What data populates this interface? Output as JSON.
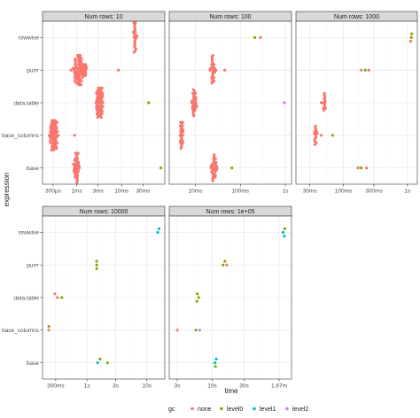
{
  "chart_data": {
    "type": "scatter",
    "xlabel": "time",
    "ylabel": "expression",
    "categories": [
      "base",
      "base_columns",
      "data.table",
      "purrr",
      "rowwise"
    ],
    "legend": {
      "title": "gc",
      "position": "bottom",
      "entries": [
        {
          "name": "none",
          "color": "#F8766D"
        },
        {
          "name": "level0",
          "color": "#7CAE00"
        },
        {
          "name": "level1",
          "color": "#00BFC4"
        },
        {
          "name": "level2",
          "color": "#C77CFF"
        }
      ]
    },
    "panels": [
      {
        "title": "Num rows: 10",
        "xscale": "log",
        "xlim_seconds": [
          0.0002,
          0.08
        ],
        "ticks": [
          {
            "value": 0.0003,
            "label": "300µs"
          },
          {
            "value": 0.001,
            "label": "1ms"
          },
          {
            "value": 0.003,
            "label": "3ms"
          },
          {
            "value": 0.01,
            "label": "10ms"
          },
          {
            "value": 0.03,
            "label": "30ms"
          }
        ],
        "clusters": [
          {
            "category": "rowwise",
            "center": 0.02,
            "log_spread": 0.04,
            "count": 22,
            "gc": "none"
          },
          {
            "category": "purrr",
            "center": 0.0012,
            "log_spread": 0.14,
            "count": 70,
            "gc": "none"
          },
          {
            "category": "data.table",
            "center": 0.0033,
            "log_spread": 0.08,
            "count": 55,
            "gc": "none"
          },
          {
            "category": "base_columns",
            "center": 0.00031,
            "log_spread": 0.09,
            "count": 70,
            "gc": "none"
          },
          {
            "category": "base",
            "center": 0.001,
            "log_spread": 0.05,
            "count": 60,
            "gc": "none"
          }
        ],
        "points": [
          {
            "category": "purrr",
            "x": 0.0085,
            "gc": "none"
          },
          {
            "category": "data.table",
            "x": 0.04,
            "gc": "level0"
          },
          {
            "category": "base_columns",
            "x": 0.0009,
            "gc": "none"
          },
          {
            "category": "base",
            "x": 0.075,
            "gc": "level0"
          }
        ]
      },
      {
        "title": "Num rows: 100",
        "xscale": "log",
        "xlim_seconds": [
          0.003,
          1.2
        ],
        "ticks": [
          {
            "value": 0.01,
            "label": "10ms"
          },
          {
            "value": 0.1,
            "label": "100ms"
          },
          {
            "value": 1,
            "label": "1s"
          }
        ],
        "clusters": [
          {
            "category": "purrr",
            "center": 0.025,
            "log_spread": 0.05,
            "count": 24,
            "gc": "none"
          },
          {
            "category": "data.table",
            "center": 0.0095,
            "log_spread": 0.06,
            "count": 26,
            "gc": "none"
          },
          {
            "category": "base_columns",
            "center": 0.005,
            "log_spread": 0.04,
            "count": 22,
            "gc": "none"
          },
          {
            "category": "base",
            "center": 0.026,
            "log_spread": 0.08,
            "count": 28,
            "gc": "none"
          }
        ],
        "points": [
          {
            "category": "rowwise",
            "x": 0.21,
            "gc": "level0"
          },
          {
            "category": "rowwise",
            "x": 0.28,
            "gc": "none"
          },
          {
            "category": "purrr",
            "x": 0.045,
            "gc": "none"
          },
          {
            "category": "data.table",
            "x": 0.95,
            "gc": "level2"
          },
          {
            "category": "base",
            "x": 0.065,
            "gc": "level0"
          }
        ]
      },
      {
        "title": "Num rows: 1000",
        "xscale": "log",
        "xlim_seconds": [
          0.02,
          1.3
        ],
        "ticks": [
          {
            "value": 0.03,
            "label": "30ms"
          },
          {
            "value": 0.1,
            "label": "100ms"
          },
          {
            "value": 0.3,
            "label": "300ms"
          },
          {
            "value": 1,
            "label": "1s"
          }
        ],
        "clusters": [
          {
            "category": "data.table",
            "center": 0.05,
            "log_spread": 0.02,
            "count": 12,
            "gc": "none"
          },
          {
            "category": "base_columns",
            "center": 0.037,
            "log_spread": 0.03,
            "count": 13,
            "gc": "none"
          }
        ],
        "points": [
          {
            "category": "rowwise",
            "x": 1.15,
            "gc": "level0"
          },
          {
            "category": "rowwise",
            "x": 1.17,
            "gc": "level0"
          },
          {
            "category": "rowwise",
            "x": 1.13,
            "gc": "none"
          },
          {
            "category": "purrr",
            "x": 0.19,
            "gc": "none"
          },
          {
            "category": "purrr",
            "x": 0.22,
            "gc": "level0"
          },
          {
            "category": "purrr",
            "x": 0.25,
            "gc": "none"
          },
          {
            "category": "data.table",
            "x": 0.045,
            "gc": "none"
          },
          {
            "category": "base_columns",
            "x": 0.068,
            "gc": "level0"
          },
          {
            "category": "base_columns",
            "x": 0.045,
            "gc": "none"
          },
          {
            "category": "base",
            "x": 0.17,
            "gc": "none"
          },
          {
            "category": "base",
            "x": 0.19,
            "gc": "level0"
          },
          {
            "category": "base",
            "x": 0.23,
            "gc": "none"
          }
        ]
      },
      {
        "title": "Num rows: 10000",
        "xscale": "log",
        "xlim_seconds": [
          0.2,
          18
        ],
        "ticks": [
          {
            "value": 0.3,
            "label": "300ms"
          },
          {
            "value": 1,
            "label": "1s"
          },
          {
            "value": 3,
            "label": "3s"
          },
          {
            "value": 10,
            "label": "10s"
          }
        ],
        "clusters": [],
        "points": [
          {
            "category": "rowwise",
            "x": 15.2,
            "gc": "level1"
          },
          {
            "category": "rowwise",
            "x": 16.0,
            "gc": "level1"
          },
          {
            "category": "purrr",
            "x": 1.45,
            "gc": "level0"
          },
          {
            "category": "purrr",
            "x": 1.45,
            "gc": "level0"
          },
          {
            "category": "purrr",
            "x": 1.45,
            "gc": "level0"
          },
          {
            "category": "data.table",
            "x": 0.32,
            "gc": "none"
          },
          {
            "category": "data.table",
            "x": 0.38,
            "gc": "level0"
          },
          {
            "category": "data.table",
            "x": 0.29,
            "gc": "none"
          },
          {
            "category": "base_columns",
            "x": 0.23,
            "gc": "none"
          },
          {
            "category": "base_columns",
            "x": 0.23,
            "gc": "level0"
          },
          {
            "category": "base",
            "x": 1.5,
            "gc": "level1"
          },
          {
            "category": "base",
            "x": 1.65,
            "gc": "level0"
          },
          {
            "category": "base",
            "x": 2.2,
            "gc": "level0"
          }
        ]
      },
      {
        "title": "Num rows: 1e+05",
        "xscale": "log",
        "xlim_seconds": [
          2.5,
          140
        ],
        "ticks": [
          {
            "value": 3,
            "label": "3s"
          },
          {
            "value": 10,
            "label": "10s"
          },
          {
            "value": 30,
            "label": "30s"
          },
          {
            "value": 100.2,
            "label": "1.67m"
          }
        ],
        "clusters": [],
        "points": [
          {
            "category": "rowwise",
            "x": 115,
            "gc": "level1"
          },
          {
            "category": "rowwise",
            "x": 122,
            "gc": "level0"
          },
          {
            "category": "rowwise",
            "x": 120,
            "gc": "level1"
          },
          {
            "category": "purrr",
            "x": 14.5,
            "gc": "level0"
          },
          {
            "category": "purrr",
            "x": 15.5,
            "gc": "level0"
          },
          {
            "category": "purrr",
            "x": 16.5,
            "gc": "none"
          },
          {
            "category": "data.table",
            "x": 6.3,
            "gc": "level0"
          },
          {
            "category": "data.table",
            "x": 6.0,
            "gc": "level0"
          },
          {
            "category": "data.table",
            "x": 5.9,
            "gc": "level0"
          },
          {
            "category": "base_columns",
            "x": 3.0,
            "gc": "none"
          },
          {
            "category": "base_columns",
            "x": 5.7,
            "gc": "level0"
          },
          {
            "category": "base_columns",
            "x": 6.5,
            "gc": "level2"
          },
          {
            "category": "base",
            "x": 11.0,
            "gc": "level1"
          },
          {
            "category": "base",
            "x": 11.5,
            "gc": "level1"
          },
          {
            "category": "base",
            "x": 11.2,
            "gc": "level0"
          }
        ]
      }
    ]
  }
}
